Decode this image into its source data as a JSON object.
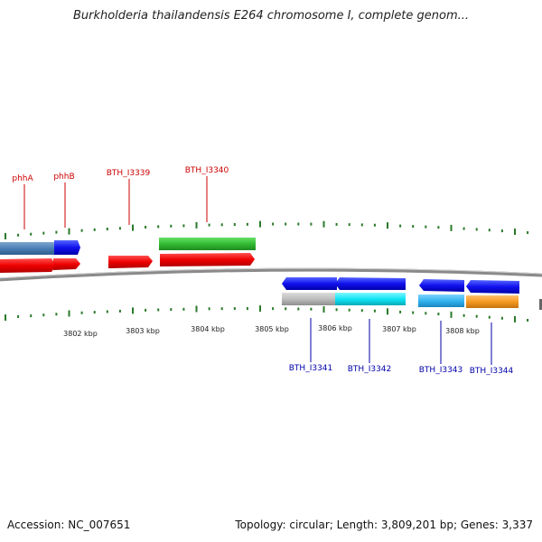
{
  "title": "Burkholderia thailandensis E264 chromosome I, complete genom...",
  "footer": {
    "accession": "Accession: NC_007651",
    "summary": "Topology: circular; Length: 3,809,201 bp; Genes: 3,337"
  },
  "colors": {
    "upper_label": "#cc0000",
    "lower_label": "#0000aa",
    "tick": "#2a7a2a",
    "backbone": "#888888"
  },
  "scale_labels": [
    "3802 kbp",
    "3803 kbp",
    "3804 kbp",
    "3805 kbp",
    "3806 kbp",
    "3807 kbp",
    "3808 kbp"
  ],
  "upper_labels": [
    "phhA",
    "phhB",
    "BTH_I3339",
    "BTH_I3340"
  ],
  "lower_labels": [
    "BTH_I3341",
    "BTH_I3342",
    "BTH_I3343",
    "BTH_I3344"
  ]
}
